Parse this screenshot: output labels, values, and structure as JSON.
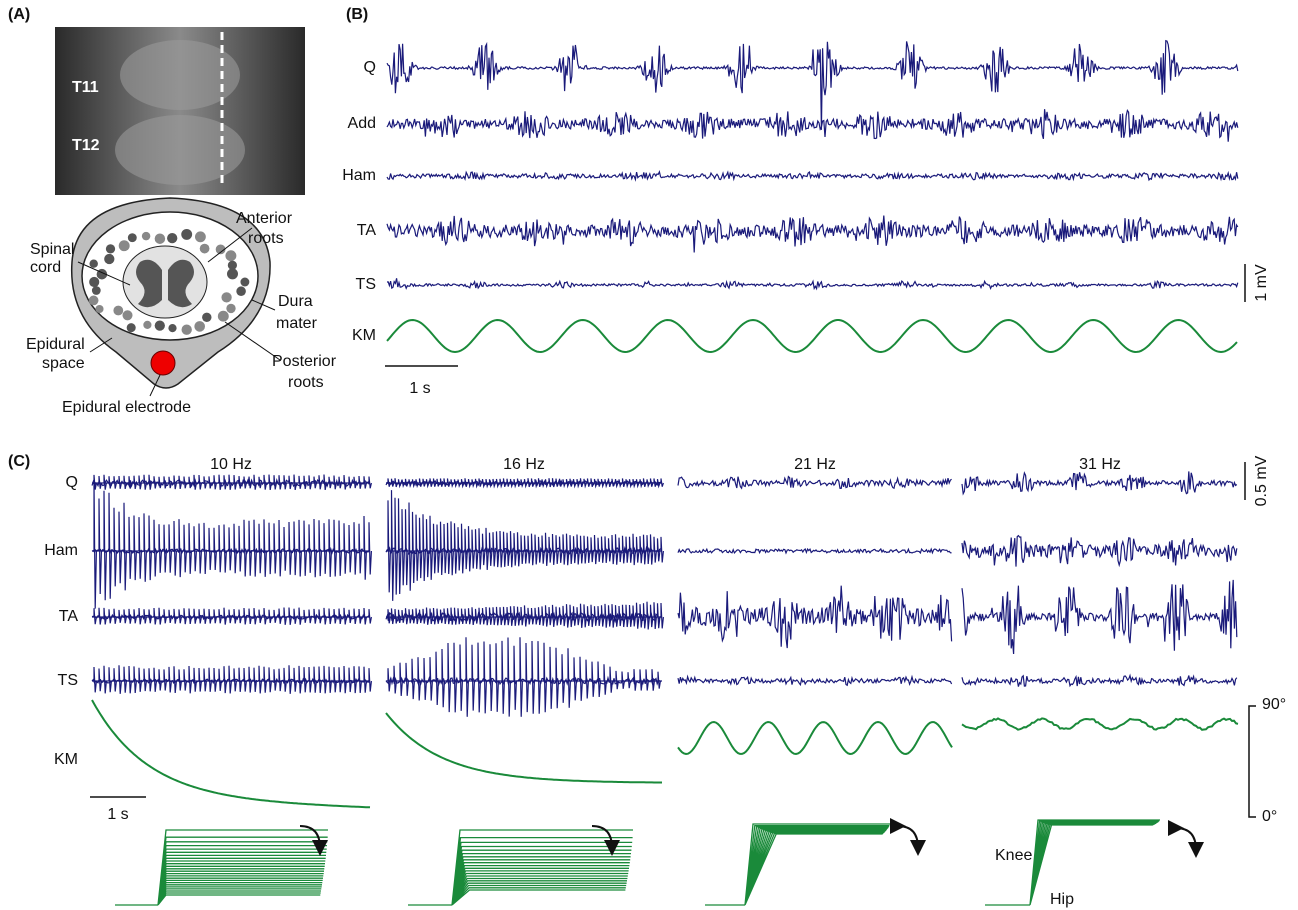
{
  "panel_a": {
    "label": "(A)",
    "vertebrae": [
      "T11",
      "T12"
    ],
    "anatomy": {
      "spinal_cord": [
        "Spinal",
        "cord"
      ],
      "anterior_roots": [
        "Anterior",
        "roots"
      ],
      "dura_mater": [
        "Dura",
        "mater"
      ],
      "epidural_space": [
        "Epidural",
        "space"
      ],
      "posterior_roots": [
        "Posterior",
        "roots"
      ],
      "electrode": "Epidural electrode"
    }
  },
  "panel_b": {
    "label": "(B)",
    "channels": [
      "Q",
      "Add",
      "Ham",
      "TA",
      "TS",
      "KM"
    ],
    "amplitude_scale": "1 mV",
    "time_scale": "1 s"
  },
  "panel_c": {
    "label": "(C)",
    "frequencies": [
      "10 Hz",
      "16 Hz",
      "21 Hz",
      "31 Hz"
    ],
    "channels": [
      "Q",
      "Ham",
      "TA",
      "TS",
      "KM"
    ],
    "amplitude_scale": "0.5 mV",
    "time_scale": "1 s",
    "angle_max": "90°",
    "angle_min": "0°",
    "joints": [
      "Knee",
      "Hip"
    ]
  }
}
